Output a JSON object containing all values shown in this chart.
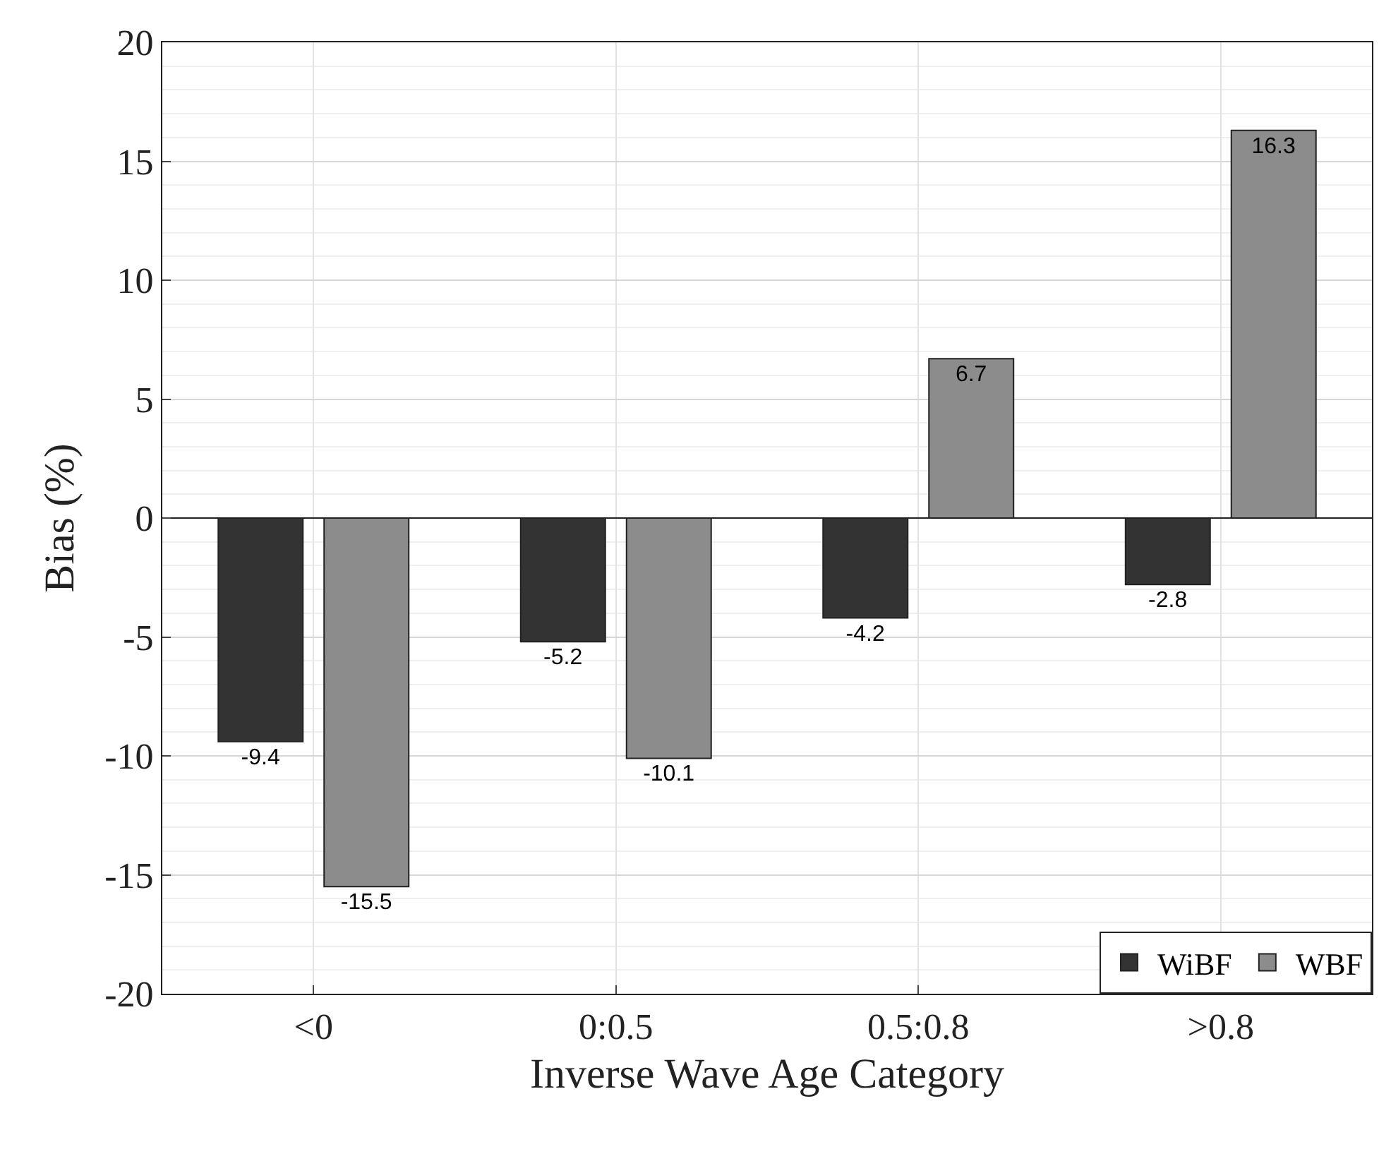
{
  "chart_data": {
    "type": "bar",
    "xlabel": "Inverse Wave Age Category",
    "ylabel": "Bias (%)",
    "categories": [
      "<0",
      "0:0.5",
      "0.5:0.8",
      ">0.8"
    ],
    "series": [
      {
        "name": "WiBF",
        "color": "#333333",
        "values": [
          -9.4,
          -5.2,
          -4.2,
          -2.8
        ]
      },
      {
        "name": "WBF",
        "color": "#8c8c8c",
        "values": [
          -15.5,
          -10.1,
          6.7,
          16.3
        ]
      }
    ],
    "ylim": [
      -20,
      20
    ],
    "yticks": [
      -20,
      -15,
      -10,
      -5,
      0,
      5,
      10,
      15,
      20
    ],
    "grid": true,
    "legend": "bottom right",
    "data_labels": true
  }
}
